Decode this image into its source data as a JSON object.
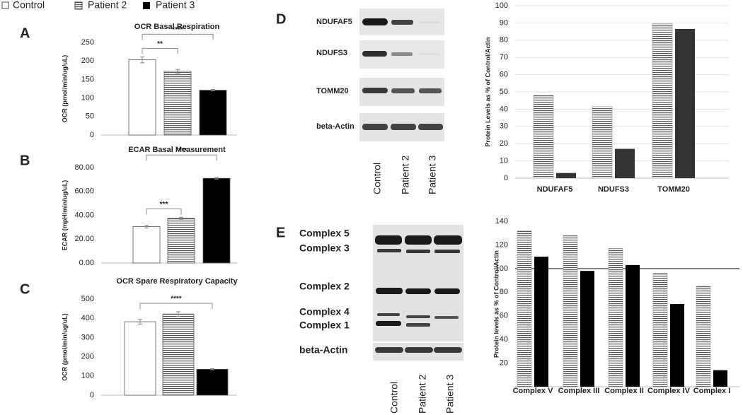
{
  "legend": {
    "entries": [
      {
        "name": "Control",
        "style": "open"
      },
      {
        "name": "Patient 2",
        "style": "striped"
      },
      {
        "name": "Patient 3",
        "style": "solid"
      }
    ]
  },
  "chart_data": [
    {
      "panel": "A",
      "type": "bar",
      "title": "OCR Basal Respiration",
      "y_label": "OCR (pmol/min/ug/uL)",
      "values": [
        203,
        172,
        121
      ],
      "errors": [
        8,
        5,
        2
      ],
      "ylim": [
        0,
        250
      ],
      "yticks": [
        0,
        50,
        100,
        150,
        200,
        250
      ],
      "significance": [
        {
          "bars": [
            0,
            1
          ],
          "label": "**"
        },
        {
          "bars": [
            0,
            2
          ],
          "label": "****"
        }
      ]
    },
    {
      "panel": "B",
      "type": "bar",
      "title": "ECAR Basal Measurement",
      "y_label": "ECAR (mpH/min/ug/uL)",
      "values": [
        30.5,
        37.5,
        71
      ],
      "errors": [
        1.2,
        0.8,
        0.6
      ],
      "ylim": [
        0,
        80
      ],
      "yticks": [
        {
          "value": 0,
          "label": "0.00"
        },
        {
          "value": 20,
          "label": "20.00"
        },
        {
          "value": 40,
          "label": "40.00"
        },
        {
          "value": 60,
          "label": "60.00"
        },
        {
          "value": 80,
          "label": "80.00"
        }
      ],
      "significance": [
        {
          "bars": [
            0,
            1
          ],
          "label": "***"
        },
        {
          "bars": [
            0,
            2
          ],
          "label": "****"
        }
      ]
    },
    {
      "panel": "C",
      "type": "bar",
      "title": "OCR Spare Respiratory Capacity",
      "y_label": "OCR (pmol/min/ug/uL)",
      "values": [
        382,
        422,
        135
      ],
      "errors": [
        12,
        12,
        3
      ],
      "ylim": [
        0,
        500
      ],
      "yticks": [
        0,
        100,
        200,
        300,
        400,
        500
      ],
      "significance": [
        {
          "bars": [
            0,
            2
          ],
          "label": "****"
        }
      ]
    },
    {
      "type": "grouped_bar",
      "y_label": "Protein Levels as % of Control/Actin",
      "categories": [
        "NDUFAF5",
        "NDUFS3",
        "TOMM20"
      ],
      "series": [
        {
          "style": "striped",
          "values": [
            48,
            41.5,
            89.5
          ]
        },
        {
          "style": "dark",
          "values": [
            3,
            17,
            86.5
          ]
        }
      ],
      "ylim": [
        0,
        100
      ],
      "yticks": [
        0,
        10,
        20,
        30,
        40,
        50,
        60,
        70,
        80,
        90,
        100
      ],
      "grid": true
    },
    {
      "type": "grouped_bar",
      "y_label": "Protein levels as % of Control/Actin",
      "categories": [
        "Complex V",
        "Complex III",
        "Complex II",
        "Complex IV",
        "Complex I"
      ],
      "series": [
        {
          "style": "striped",
          "values": [
            132,
            128,
            117,
            96,
            85
          ]
        },
        {
          "style": "solid",
          "values": [
            110,
            98,
            103,
            70,
            14
          ]
        }
      ],
      "ylim": [
        0,
        140
      ],
      "yticks": [
        20,
        40,
        60,
        80,
        100,
        120,
        140
      ],
      "grid": false,
      "ref_line": 100
    }
  ],
  "blots": [
    {
      "panel": "D",
      "rows": [
        "NDUFAF5",
        "NDUFS3",
        "TOMM20",
        "beta-Actin"
      ],
      "lanes": [
        "Control",
        "Patient 2",
        "Patient 3"
      ]
    },
    {
      "panel": "E",
      "rows": [
        "Complex 5",
        "Complex 3",
        "Complex 2",
        "Complex 4",
        "Complex 1",
        "beta-Actin"
      ],
      "lanes": [
        "Control",
        "Patient 2",
        "Patient 3"
      ]
    }
  ]
}
